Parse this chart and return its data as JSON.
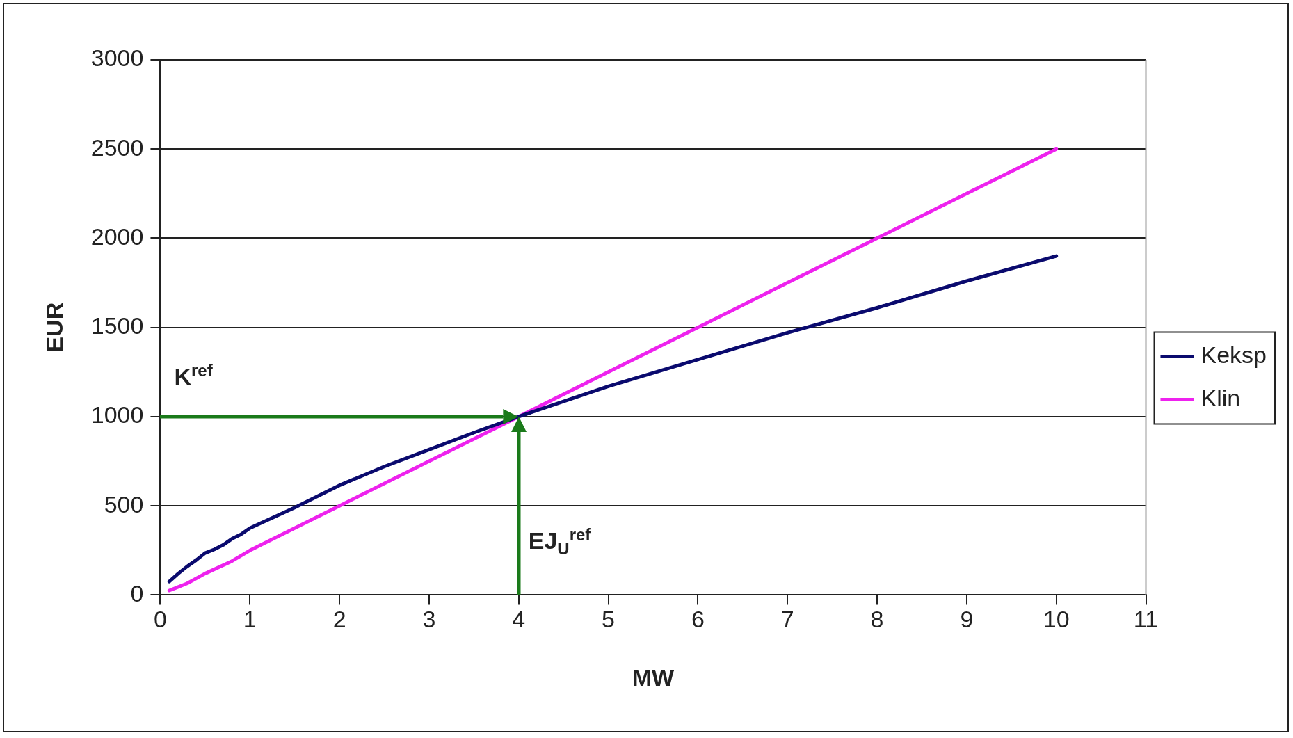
{
  "chart_data": {
    "type": "line",
    "xlabel": "MW",
    "ylabel": "EUR",
    "xlim": [
      0,
      11
    ],
    "xticks": [
      0,
      1,
      2,
      3,
      4,
      5,
      6,
      7,
      8,
      9,
      10,
      11
    ],
    "ylim": [
      0,
      3000
    ],
    "yticks": [
      0,
      500,
      1000,
      1500,
      2000,
      2500,
      3000
    ],
    "grid": "y",
    "legend": "right",
    "marker": "none",
    "line_style": "solid",
    "series": [
      {
        "name": "Keksp",
        "color": "#0a0a6e",
        "x": [
          0.1,
          0.2,
          0.3,
          0.4,
          0.5,
          0.6,
          0.7,
          0.8,
          0.9,
          1,
          1.5,
          2,
          2.5,
          3,
          3.5,
          4,
          5,
          6,
          7,
          8,
          9,
          10
        ],
        "values": [
          75,
          120,
          160,
          195,
          235,
          255,
          280,
          315,
          340,
          375,
          490,
          615,
          720,
          815,
          910,
          1000,
          1170,
          1320,
          1470,
          1610,
          1760,
          1900
        ]
      },
      {
        "name": "Klin",
        "color": "#ee22ee",
        "x": [
          0.1,
          0.3,
          0.5,
          0.8,
          1,
          2,
          3,
          4,
          5,
          6,
          7,
          8,
          9,
          10
        ],
        "values": [
          25,
          65,
          120,
          190,
          250,
          500,
          750,
          1000,
          1250,
          1500,
          1750,
          2000,
          2250,
          2500
        ]
      }
    ],
    "ref_lines": [
      {
        "axis": "y",
        "value": 1000,
        "label": "K$^{ref}$",
        "color": "#1a7a1a"
      },
      {
        "axis": "x",
        "value": 4,
        "label": "EJ$_{U}$$^{ref}$",
        "color": "#1a7a1a"
      }
    ]
  }
}
